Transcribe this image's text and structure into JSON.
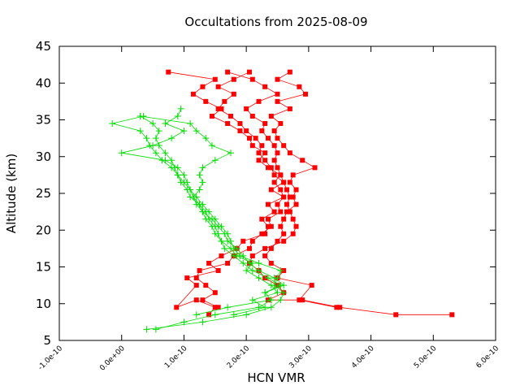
{
  "chart_data": {
    "type": "scatter",
    "title": "Occultations from 2025-08-09",
    "xlabel": "HCN VMR",
    "ylabel": "Altitude (km)",
    "xlim": [
      -1e-10,
      6e-10
    ],
    "ylim": [
      5,
      45
    ],
    "x_ticks": [
      "-1.0e-10",
      "0.0e+00",
      "1.0e-10",
      "2.0e-10",
      "3.0e-10",
      "4.0e-10",
      "5.0e-10",
      "6.0e-10"
    ],
    "y_ticks": [
      "5",
      "10",
      "15",
      "20",
      "25",
      "30",
      "35",
      "40",
      "45"
    ],
    "grid": false,
    "series": [
      {
        "color": "#ff0000",
        "marker": "square",
        "profiles": [
          [
            [
              5.3e-10,
              8.5
            ],
            [
              4.4e-10,
              8.5
            ],
            [
              3.5e-10,
              9.5
            ],
            [
              2.9e-10,
              10.5
            ],
            [
              2.35e-10,
              10.5
            ],
            [
              2.6e-10,
              11.5
            ],
            [
              2.5e-10,
              12.5
            ],
            [
              2.3e-10,
              13.5
            ],
            [
              2.2e-10,
              14.5
            ],
            [
              2.05e-10,
              15.5
            ],
            [
              2.1e-10,
              16.5
            ],
            [
              2.3e-10,
              17.5
            ],
            [
              2.6e-10,
              18.5
            ],
            [
              2.75e-10,
              19.5
            ],
            [
              2.8e-10,
              20.5
            ],
            [
              2.75e-10,
              21.5
            ],
            [
              2.7e-10,
              22.5
            ],
            [
              2.65e-10,
              23.5
            ],
            [
              2.7e-10,
              24.5
            ],
            [
              2.65e-10,
              25.5
            ],
            [
              2.6e-10,
              26.5
            ],
            [
              2.55e-10,
              27.5
            ],
            [
              2.5e-10,
              28.5
            ],
            [
              2.45e-10,
              29.5
            ],
            [
              2.5e-10,
              30.5
            ],
            [
              2.45e-10,
              31.5
            ],
            [
              2.35e-10,
              32.5
            ],
            [
              2.25e-10,
              33.5
            ],
            [
              2.3e-10,
              34.5
            ],
            [
              2.1e-10,
              35.5
            ],
            [
              2e-10,
              36.5
            ],
            [
              2.2e-10,
              37.5
            ],
            [
              2.5e-10,
              38.5
            ],
            [
              2.3e-10,
              39.5
            ],
            [
              2.1e-10,
              40.5
            ],
            [
              1.7e-10,
              41.5
            ]
          ],
          [
            [
              3.45e-10,
              9.5
            ],
            [
              2.85e-10,
              10.5
            ],
            [
              3.05e-10,
              12.5
            ],
            [
              2.5e-10,
              13.5
            ],
            [
              2.6e-10,
              14.5
            ],
            [
              2.4e-10,
              15.5
            ],
            [
              2.3e-10,
              16.5
            ],
            [
              2.4e-10,
              17.5
            ],
            [
              2.5e-10,
              18.5
            ],
            [
              2.6e-10,
              19.5
            ],
            [
              2.55e-10,
              20.5
            ],
            [
              2.6e-10,
              21.5
            ],
            [
              2.65e-10,
              22.5
            ],
            [
              2.8e-10,
              23.5
            ],
            [
              2.75e-10,
              24.5
            ],
            [
              2.8e-10,
              25.5
            ],
            [
              2.7e-10,
              26.5
            ],
            [
              2.75e-10,
              27.5
            ],
            [
              3.1e-10,
              28.5
            ],
            [
              2.9e-10,
              29.5
            ],
            [
              2.7e-10,
              30.5
            ],
            [
              2.6e-10,
              31.5
            ],
            [
              2.5e-10,
              32.5
            ],
            [
              2.45e-10,
              33.5
            ],
            [
              2.55e-10,
              34.5
            ],
            [
              2.4e-10,
              35.5
            ],
            [
              2.7e-10,
              36.5
            ],
            [
              2.5e-10,
              37.5
            ],
            [
              2.95e-10,
              38.5
            ],
            [
              2.85e-10,
              39.5
            ],
            [
              2.5e-10,
              40.5
            ],
            [
              2.7e-10,
              41.5
            ]
          ],
          [
            [
              1.4e-10,
              8.5
            ],
            [
              1.5e-10,
              9.5
            ],
            [
              1.2e-10,
              10.5
            ],
            [
              8.8e-11,
              9.5
            ],
            [
              1.2e-10,
              12.5
            ],
            [
              1.05e-10,
              13.5
            ],
            [
              1.55e-10,
              14.5
            ],
            [
              1.4e-10,
              15.5
            ],
            [
              1.6e-10,
              16.5
            ],
            [
              1.85e-10,
              17.5
            ],
            [
              1.95e-10,
              18.5
            ],
            [
              2.3e-10,
              19.5
            ],
            [
              2.35e-10,
              20.5
            ],
            [
              2.25e-10,
              21.5
            ],
            [
              2.45e-10,
              22.5
            ],
            [
              2.35e-10,
              23.5
            ],
            [
              2.6e-10,
              24.5
            ],
            [
              2.55e-10,
              25.5
            ],
            [
              2.45e-10,
              26.5
            ],
            [
              2.55e-10,
              27.5
            ],
            [
              2.35e-10,
              28.5
            ],
            [
              2.2e-10,
              29.5
            ],
            [
              2.3e-10,
              30.5
            ],
            [
              2.1e-10,
              31.5
            ],
            [
              2.05e-10,
              32.5
            ],
            [
              1.9e-10,
              33.5
            ],
            [
              1.7e-10,
              34.5
            ],
            [
              1.45e-10,
              35.5
            ],
            [
              1.6e-10,
              36.5
            ],
            [
              1.35e-10,
              37.5
            ],
            [
              1.15e-10,
              38.5
            ],
            [
              1.3e-10,
              39.5
            ],
            [
              1.5e-10,
              40.5
            ],
            [
              7.5e-11,
              41.5
            ]
          ],
          [
            [
              1.55e-10,
              9.5
            ],
            [
              1.3e-10,
              10.5
            ],
            [
              1.5e-10,
              11.5
            ],
            [
              1.35e-10,
              12.5
            ],
            [
              1.2e-10,
              13.5
            ],
            [
              1.25e-10,
              14.5
            ],
            [
              1.7e-10,
              15.5
            ],
            [
              1.8e-10,
              16.5
            ],
            [
              2.05e-10,
              17.5
            ],
            [
              2.1e-10,
              18.5
            ],
            [
              2.25e-10,
              19.5
            ],
            [
              2.4e-10,
              20.5
            ],
            [
              2.35e-10,
              21.5
            ],
            [
              2.55e-10,
              22.5
            ],
            [
              2.5e-10,
              23.5
            ],
            [
              2.6e-10,
              24.5
            ],
            [
              2.4e-10,
              25.5
            ],
            [
              2.6e-10,
              26.5
            ],
            [
              2.45e-10,
              27.5
            ],
            [
              2.4e-10,
              28.5
            ],
            [
              2.3e-10,
              29.5
            ],
            [
              2.2e-10,
              30.5
            ],
            [
              2.25e-10,
              31.5
            ],
            [
              2.15e-10,
              32.5
            ],
            [
              2e-10,
              33.5
            ],
            [
              1.9e-10,
              34.5
            ],
            [
              1.75e-10,
              35.5
            ],
            [
              1.55e-10,
              36.5
            ],
            [
              1.65e-10,
              37.5
            ],
            [
              1.8e-10,
              38.5
            ],
            [
              1.55e-10,
              39.5
            ],
            [
              1.8e-10,
              40.5
            ],
            [
              2.05e-10,
              41.5
            ]
          ]
        ]
      },
      {
        "color": "#00dd00",
        "marker": "plus",
        "profiles": [
          [
            [
              4e-11,
              6.5
            ],
            [
              1.3e-10,
              7.5
            ],
            [
              2e-10,
              8.5
            ],
            [
              2.4e-10,
              9.5
            ],
            [
              2.55e-10,
              10.5
            ],
            [
              2.6e-10,
              11.5
            ],
            [
              2.45e-10,
              12.5
            ],
            [
              2.5e-10,
              13.5
            ],
            [
              2.55e-10,
              14.5
            ],
            [
              2.2e-10,
              15.5
            ],
            [
              1.9e-10,
              16.5
            ],
            [
              1.8e-10,
              17.5
            ],
            [
              1.75e-10,
              18.5
            ],
            [
              1.7e-10,
              19.5
            ],
            [
              1.6e-10,
              20.5
            ],
            [
              1.5e-10,
              21.5
            ],
            [
              1.4e-10,
              22.5
            ],
            [
              1.3e-10,
              23.5
            ],
            [
              1.2e-10,
              24.5
            ],
            [
              1.1e-10,
              25.5
            ],
            [
              1e-10,
              26.5
            ],
            [
              9e-11,
              27.5
            ],
            [
              8.5e-11,
              28.5
            ],
            [
              8e-11,
              29.5
            ],
            [
              7e-11,
              30.5
            ],
            [
              6e-11,
              31.5
            ],
            [
              5.5e-11,
              32.5
            ],
            [
              6e-11,
              33.5
            ],
            [
              5e-11,
              34.5
            ],
            [
              3e-11,
              35.5
            ]
          ],
          [
            [
              5.5e-11,
              6.5
            ],
            [
              1e-10,
              7.5
            ],
            [
              1.5e-10,
              8.5
            ],
            [
              2.2e-10,
              9.5
            ],
            [
              2.4e-10,
              10.5
            ],
            [
              2.3e-10,
              11.5
            ],
            [
              2.6e-10,
              12.5
            ],
            [
              2.45e-10,
              13.5
            ],
            [
              2.2e-10,
              14.5
            ],
            [
              2.05e-10,
              15.5
            ],
            [
              1.95e-10,
              16.5
            ],
            [
              1.85e-10,
              17.5
            ],
            [
              1.7e-10,
              18.5
            ],
            [
              1.65e-10,
              19.5
            ],
            [
              1.55e-10,
              20.5
            ],
            [
              1.45e-10,
              21.5
            ],
            [
              1.3e-10,
              22.5
            ],
            [
              1.25e-10,
              23.5
            ],
            [
              1.1e-10,
              24.5
            ],
            [
              1.05e-10,
              25.5
            ],
            [
              9.5e-11,
              26.5
            ],
            [
              9e-11,
              27.5
            ],
            [
              8e-11,
              28.5
            ],
            [
              6.5e-11,
              29.5
            ],
            [
              5.5e-11,
              30.5
            ],
            [
              4.5e-11,
              31.5
            ],
            [
              4e-11,
              32.5
            ],
            [
              3e-11,
              33.5
            ],
            [
              -1.5e-11,
              34.5
            ],
            [
              3.5e-11,
              35.5
            ]
          ],
          [
            [
              1.8e-10,
              8.5
            ],
            [
              2.3e-10,
              9.5
            ],
            [
              2.1e-10,
              10.5
            ],
            [
              2.5e-10,
              11.5
            ],
            [
              2.4e-10,
              12.5
            ],
            [
              2.2e-10,
              13.5
            ],
            [
              2e-10,
              14.5
            ],
            [
              2.1e-10,
              15.5
            ],
            [
              1.85e-10,
              16.5
            ],
            [
              1.75e-10,
              17.5
            ],
            [
              1.6e-10,
              18.5
            ],
            [
              1.55e-10,
              19.5
            ],
            [
              1.5e-10,
              20.5
            ],
            [
              1.4e-10,
              21.5
            ],
            [
              1.35e-10,
              22.5
            ],
            [
              1.25e-10,
              23.5
            ],
            [
              1.15e-10,
              24.5
            ],
            [
              1.1e-10,
              25.5
            ],
            [
              1.05e-10,
              26.5
            ],
            [
              1e-10,
              27.5
            ],
            [
              9e-11,
              28.5
            ],
            [
              7e-11,
              29.5
            ],
            [
              0.0,
              30.5
            ],
            [
              5e-11,
              31.5
            ],
            [
              8e-11,
              32.5
            ],
            [
              1e-10,
              33.5
            ],
            [
              7e-11,
              34.5
            ],
            [
              9e-11,
              35.5
            ],
            [
              9.5e-11,
              36.5
            ]
          ],
          [
            [
              1.2e-10,
              8.5
            ],
            [
              1.7e-10,
              9.5
            ],
            [
              2.4e-10,
              10.5
            ],
            [
              2.3e-10,
              11.5
            ],
            [
              2.55e-10,
              12.5
            ],
            [
              2.35e-10,
              13.5
            ],
            [
              2.1e-10,
              14.5
            ],
            [
              1.95e-10,
              15.5
            ],
            [
              1.8e-10,
              16.5
            ],
            [
              1.65e-10,
              17.5
            ],
            [
              1.6e-10,
              18.5
            ],
            [
              1.5e-10,
              19.5
            ],
            [
              1.45e-10,
              20.5
            ],
            [
              1.35e-10,
              21.5
            ],
            [
              1.3e-10,
              22.5
            ],
            [
              1.2e-10,
              23.5
            ],
            [
              1.15e-10,
              24.5
            ],
            [
              1.25e-10,
              25.5
            ],
            [
              1.3e-10,
              26.5
            ],
            [
              1.25e-10,
              27.5
            ],
            [
              1.3e-10,
              28.5
            ],
            [
              1.5e-10,
              29.5
            ],
            [
              1.75e-10,
              30.5
            ],
            [
              1.45e-10,
              31.5
            ],
            [
              1.35e-10,
              32.5
            ],
            [
              1.2e-10,
              33.5
            ],
            [
              1.1e-10,
              34.5
            ],
            [
              3e-11,
              35.5
            ]
          ]
        ]
      }
    ]
  }
}
